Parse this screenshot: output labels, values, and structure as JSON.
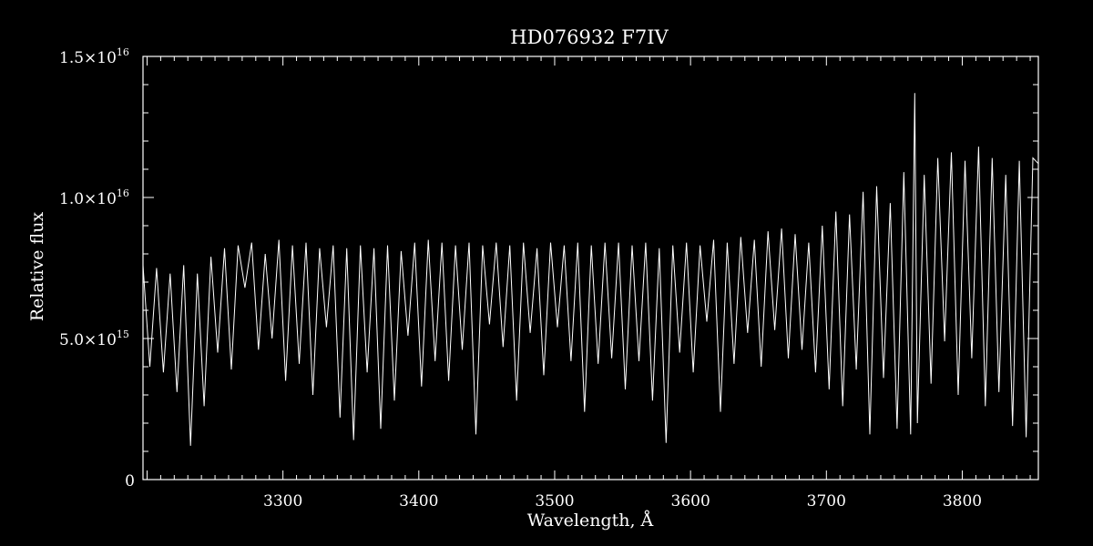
{
  "chart_data": {
    "type": "line",
    "title": "HD076932   F7IV",
    "xlabel": "Wavelength, Å",
    "ylabel": "Relative flux",
    "xlim": [
      3197,
      3856
    ],
    "ylim": [
      0,
      1.5e+16
    ],
    "grid": false,
    "legend": "none",
    "colors": {
      "background": "#000000",
      "foreground": "#ffffff"
    },
    "x_ticks": [
      {
        "value": 3300,
        "label": "3300"
      },
      {
        "value": 3400,
        "label": "3400"
      },
      {
        "value": 3500,
        "label": "3500"
      },
      {
        "value": 3600,
        "label": "3600"
      },
      {
        "value": 3700,
        "label": "3700"
      },
      {
        "value": 3800,
        "label": "3800"
      }
    ],
    "y_ticks": [
      {
        "value": 0,
        "mantissa": "0",
        "exponent": ""
      },
      {
        "value": 5000000000000000.0,
        "mantissa": "5.0×10",
        "exponent": "15"
      },
      {
        "value": 1e+16,
        "mantissa": "1.0×10",
        "exponent": "16"
      },
      {
        "value": 1.5e+16,
        "mantissa": "1.5×10",
        "exponent": "16"
      }
    ],
    "series": [
      {
        "x": [
          3197,
          3202,
          3207,
          3212,
          3217,
          3222,
          3227,
          3232,
          3237,
          3242,
          3247,
          3252,
          3257,
          3262,
          3267,
          3272,
          3277,
          3282,
          3287,
          3292,
          3297,
          3302,
          3307,
          3312,
          3317,
          3322,
          3327,
          3332,
          3337,
          3342,
          3347,
          3352,
          3357,
          3362,
          3367,
          3372,
          3377,
          3382,
          3387,
          3392,
          3397,
          3402,
          3407,
          3412,
          3417,
          3422,
          3427,
          3432,
          3437,
          3442,
          3447,
          3452,
          3457,
          3462,
          3467,
          3472,
          3477,
          3482,
          3487,
          3492,
          3497,
          3502,
          3507,
          3512,
          3517,
          3522,
          3527,
          3532,
          3537,
          3542,
          3547,
          3552,
          3557,
          3562,
          3567,
          3572,
          3577,
          3582,
          3587,
          3592,
          3597,
          3602,
          3607,
          3612,
          3617,
          3622,
          3627,
          3632,
          3637,
          3642,
          3647,
          3652,
          3657,
          3662,
          3667,
          3672,
          3677,
          3682,
          3687,
          3692,
          3697,
          3702,
          3707,
          3712,
          3717,
          3722,
          3727,
          3732,
          3737,
          3742,
          3747,
          3752,
          3757,
          3762,
          3765,
          3767,
          3772,
          3777,
          3782,
          3787,
          3792,
          3797,
          3802,
          3807,
          3812,
          3817,
          3822,
          3827,
          3832,
          3837,
          3842,
          3847,
          3852,
          3856
        ],
        "y": [
          7600000000000000.0,
          4000000000000000.0,
          7500000000000000.0,
          3800000000000000.0,
          7300000000000000.0,
          3100000000000000.0,
          7600000000000000.0,
          1200000000000000.0,
          7300000000000000.0,
          2600000000000000.0,
          7900000000000000.0,
          4500000000000000.0,
          8200000000000000.0,
          3900000000000000.0,
          8300000000000000.0,
          6800000000000000.0,
          8400000000000000.0,
          4600000000000000.0,
          8000000000000000.0,
          5000000000000000.0,
          8500000000000000.0,
          3500000000000000.0,
          8300000000000000.0,
          4100000000000000.0,
          8400000000000000.0,
          3000000000000000.0,
          8200000000000000.0,
          5400000000000000.0,
          8300000000000000.0,
          2200000000000000.0,
          8200000000000000.0,
          1400000000000000.0,
          8300000000000000.0,
          3800000000000000.0,
          8200000000000000.0,
          1800000000000000.0,
          8300000000000000.0,
          2800000000000000.0,
          8100000000000000.0,
          5100000000000000.0,
          8400000000000000.0,
          3300000000000000.0,
          8500000000000000.0,
          4200000000000000.0,
          8400000000000000.0,
          3500000000000000.0,
          8300000000000000.0,
          4600000000000000.0,
          8400000000000000.0,
          1600000000000000.0,
          8300000000000000.0,
          5500000000000000.0,
          8400000000000000.0,
          4700000000000000.0,
          8300000000000000.0,
          2800000000000000.0,
          8400000000000000.0,
          5200000000000000.0,
          8200000000000000.0,
          3700000000000000.0,
          8400000000000000.0,
          5400000000000000.0,
          8300000000000000.0,
          4200000000000000.0,
          8400000000000000.0,
          2400000000000000.0,
          8300000000000000.0,
          4100000000000000.0,
          8400000000000000.0,
          4300000000000000.0,
          8400000000000000.0,
          3200000000000000.0,
          8300000000000000.0,
          4200000000000000.0,
          8400000000000000.0,
          2800000000000000.0,
          8200000000000000.0,
          1300000000000000.0,
          8300000000000000.0,
          4500000000000000.0,
          8400000000000000.0,
          3800000000000000.0,
          8300000000000000.0,
          5600000000000000.0,
          8500000000000000.0,
          2400000000000000.0,
          8400000000000000.0,
          4100000000000000.0,
          8600000000000000.0,
          5200000000000000.0,
          8500000000000000.0,
          4000000000000000.0,
          8800000000000000.0,
          5300000000000000.0,
          8900000000000000.0,
          4300000000000000.0,
          8700000000000000.0,
          4600000000000000.0,
          8400000000000000.0,
          3800000000000000.0,
          9000000000000000.0,
          3200000000000000.0,
          9500000000000000.0,
          2600000000000000.0,
          9400000000000000.0,
          3900000000000000.0,
          1.02e+16,
          1600000000000000.0,
          1.04e+16,
          3600000000000000.0,
          9800000000000000.0,
          1800000000000000.0,
          1.09e+16,
          1600000000000000.0,
          1.37e+16,
          2000000000000000.0,
          1.08e+16,
          3400000000000000.0,
          1.14e+16,
          4900000000000000.0,
          1.16e+16,
          3000000000000000.0,
          1.13e+16,
          4300000000000000.0,
          1.18e+16,
          2600000000000000.0,
          1.14e+16,
          3100000000000000.0,
          1.08e+16,
          1900000000000000.0,
          1.13e+16,
          1500000000000000.0,
          1.14e+16,
          1.12e+16
        ]
      }
    ]
  }
}
